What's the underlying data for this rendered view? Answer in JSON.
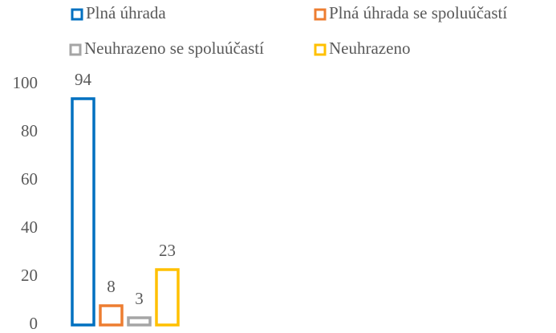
{
  "chart_data": {
    "type": "bar",
    "categories": [
      null
    ],
    "series": [
      {
        "name": "Plná úhrada",
        "color": "#0070c0",
        "values": [
          94
        ]
      },
      {
        "name": "Plná úhrada se spoluúčastí",
        "color": "#ed7d31",
        "values": [
          8
        ]
      },
      {
        "name": "Neuhrazeno se spoluúčastí",
        "color": "#a5a5a5",
        "values": [
          3
        ]
      },
      {
        "name": "Neuhrazeno",
        "color": "#ffc000",
        "values": [
          23
        ]
      }
    ],
    "ylim": [
      0,
      100
    ],
    "yticks": [
      0,
      20,
      40,
      60,
      80,
      100
    ],
    "grid": false,
    "legend": "top"
  }
}
